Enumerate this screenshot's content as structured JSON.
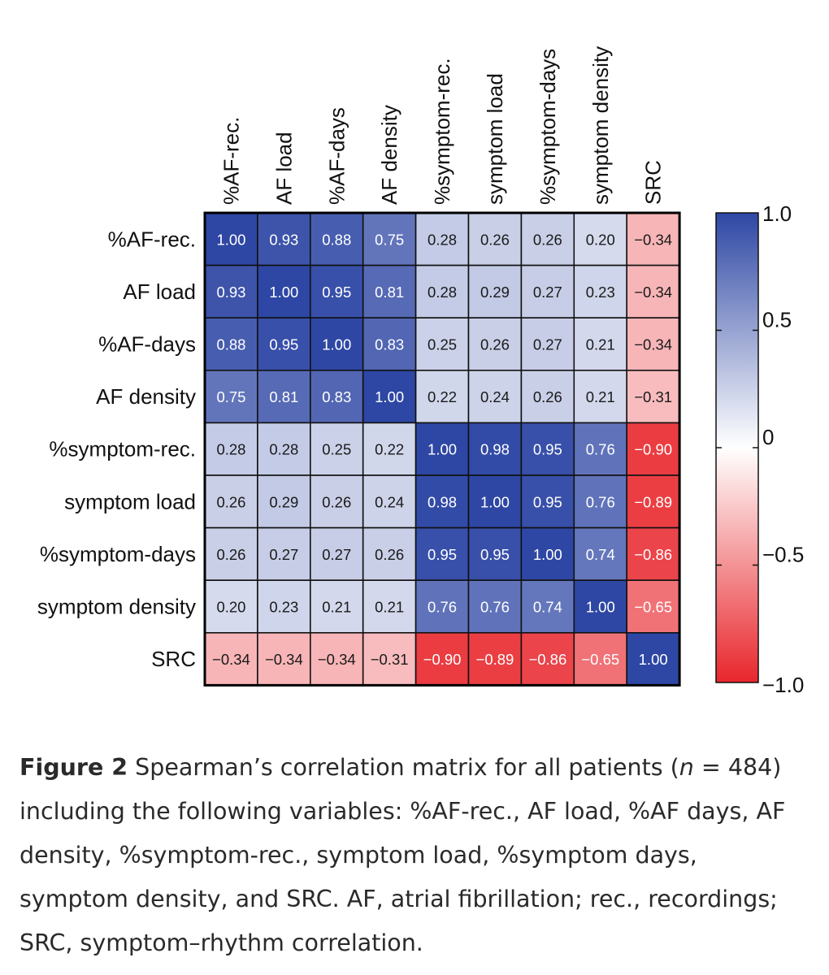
{
  "chart_data": {
    "type": "heatmap",
    "title": "",
    "variables": [
      "%AF-rec.",
      "AF load",
      "%AF-days",
      "AF density",
      "%symptom-rec.",
      "symptom load",
      "%symptom-days",
      "symptom density",
      "SRC"
    ],
    "matrix": [
      [
        "1.00",
        "0.93",
        "0.88",
        "0.75",
        "0.28",
        "0.26",
        "0.26",
        "0.20",
        "−0.34"
      ],
      [
        "0.93",
        "1.00",
        "0.95",
        "0.81",
        "0.28",
        "0.29",
        "0.27",
        "0.23",
        "−0.34"
      ],
      [
        "0.88",
        "0.95",
        "1.00",
        "0.83",
        "0.25",
        "0.26",
        "0.27",
        "0.21",
        "−0.34"
      ],
      [
        "0.75",
        "0.81",
        "0.83",
        "1.00",
        "0.22",
        "0.24",
        "0.26",
        "0.21",
        "−0.31"
      ],
      [
        "0.28",
        "0.28",
        "0.25",
        "0.22",
        "1.00",
        "0.98",
        "0.95",
        "0.76",
        "−0.90"
      ],
      [
        "0.26",
        "0.29",
        "0.26",
        "0.24",
        "0.98",
        "1.00",
        "0.95",
        "0.76",
        "−0.89"
      ],
      [
        "0.26",
        "0.27",
        "0.27",
        "0.26",
        "0.95",
        "0.95",
        "1.00",
        "0.74",
        "−0.86"
      ],
      [
        "0.20",
        "0.23",
        "0.21",
        "0.21",
        "0.76",
        "0.76",
        "0.74",
        "1.00",
        "−0.65"
      ],
      [
        "−0.34",
        "−0.34",
        "−0.34",
        "−0.31",
        "−0.90",
        "−0.89",
        "−0.86",
        "−0.65",
        "1.00"
      ]
    ],
    "colorbar": {
      "range": [
        -1.0,
        1.0
      ],
      "tick_labels": [
        "1.0",
        "0.5",
        "0",
        "−0.5",
        "−1.0"
      ],
      "tick_values": [
        1.0,
        0.5,
        0,
        -0.5,
        -1.0
      ],
      "colors": {
        "positive": "#2e47a4",
        "zero": "#ffffff",
        "negative": "#e8262c"
      }
    },
    "legend": "right"
  },
  "caption": {
    "label": "Figure 2",
    "text_before_n": " Spearman’s correlation matrix for all patients (",
    "n_symbol": "n",
    "text_after_n": " = 484) including the following variables: %AF-rec., AF load, %AF days, AF density, %symptom-rec., symptom load, %symptom days, symptom density, and SRC. AF, atrial fibrillation; rec., recordings; SRC, symptom–rhythm correlation."
  }
}
